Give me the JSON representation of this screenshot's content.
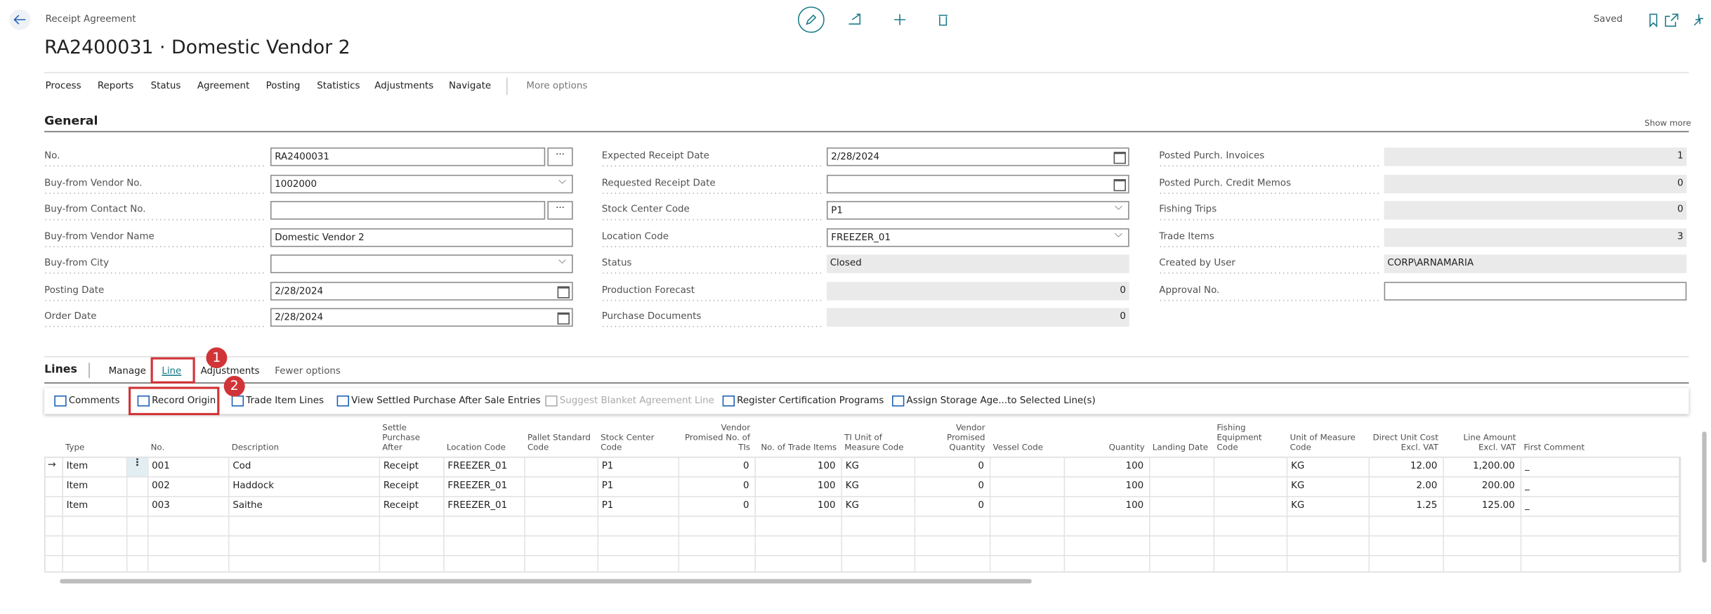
{
  "header": {
    "breadcrumb": "Receipt Agreement",
    "title": "RA2400031 · Domestic Vendor 2",
    "status": "Saved"
  },
  "menu": [
    "Process",
    "Reports",
    "Status",
    "Agreement",
    "Posting",
    "Statistics",
    "Adjustments",
    "Navigate",
    "More options"
  ],
  "general": {
    "title": "General",
    "show_more": "Show more",
    "columns": [
      [
        {
          "label": "No.",
          "value": "RA2400031",
          "control": "lookup"
        },
        {
          "label": "Buy-from Vendor No.",
          "value": "1002000",
          "control": "dropdown"
        },
        {
          "label": "Buy-from Contact No.",
          "control": "lookup"
        },
        {
          "label": "Buy-from Vendor Name",
          "value": "Domestic Vendor 2",
          "control": "text"
        },
        {
          "label": "Buy-from City",
          "control": "dropdown"
        },
        {
          "label": "Posting Date",
          "value": "2/28/2024",
          "control": "date"
        },
        {
          "label": "Order Date",
          "value": "2/28/2024",
          "control": "date"
        }
      ],
      [
        {
          "label": "Expected Receipt Date",
          "value": "2/28/2024",
          "control": "date"
        },
        {
          "label": "Requested Receipt Date",
          "control": "date"
        },
        {
          "label": "Stock Center Code",
          "value": "P1",
          "control": "dropdown"
        },
        {
          "label": "Location Code",
          "value": "FREEZER_01",
          "control": "dropdown"
        },
        {
          "label": "Status",
          "value": "Closed",
          "control": "readonly"
        },
        {
          "label": "Production Forecast",
          "value": 0,
          "control": "readonly-number"
        },
        {
          "label": "Purchase Documents",
          "value": 0,
          "control": "readonly-number"
        }
      ],
      [
        {
          "label": "Posted Purch. Invoices",
          "value": 1,
          "control": "readonly-number"
        },
        {
          "label": "Posted Purch. Credit Memos",
          "value": 0,
          "control": "readonly-number"
        },
        {
          "label": "Fishing Trips",
          "value": 0,
          "control": "readonly-number"
        },
        {
          "label": "Trade Items",
          "value": 3,
          "control": "readonly-number"
        },
        {
          "label": "Created by User",
          "value": "CORP\\ARNAMARIA",
          "control": "readonly"
        },
        {
          "label": "Approval No.",
          "control": "text"
        }
      ]
    ]
  },
  "lines": {
    "title": "Lines",
    "tabs": [
      "Manage",
      "Line",
      "Adjustments",
      "Fewer options"
    ],
    "actions": [
      "Comments",
      "Record Origin",
      "Trade Item Lines",
      "View Settled Purchase After Sale Entries",
      "Suggest Blanket Agreement Line",
      "Register Certification Programs",
      "Assign Storage Age...to Selected Line(s)"
    ],
    "annotations": [
      "1",
      "2"
    ],
    "table": {
      "columns": [
        "Type",
        "No.",
        "Description",
        "Settle Purchase After",
        "Location Code",
        "Pallet Standard Code",
        "Stock Center Code",
        "Vendor Promised No. of TIs",
        "No. of Trade Items",
        "TI Unit of Measure Code",
        "Vendor Promised Quantity",
        "Vessel Code",
        "Quantity",
        "Landing Date",
        "Fishing Equipment Code",
        "Unit of Measure Code",
        "Direct Unit Cost Excl. VAT",
        "Line Amount Excl. VAT",
        "First Comment"
      ],
      "rows": [
        [
          "Item",
          "001",
          "Cod",
          "Receipt",
          "FREEZER_01",
          null,
          "P1",
          "0",
          "100",
          "KG",
          "0",
          null,
          "100",
          null,
          null,
          "KG",
          "12.00",
          "1,200.00",
          "_"
        ],
        [
          "Item",
          "002",
          "Haddock",
          "Receipt",
          "FREEZER_01",
          null,
          "P1",
          "0",
          "100",
          "KG",
          "0",
          null,
          "100",
          null,
          null,
          "KG",
          "2.00",
          "200.00",
          "_"
        ],
        [
          "Item",
          "003",
          "Saithe",
          "Receipt",
          "FREEZER_01",
          null,
          "P1",
          "0",
          "100",
          "KG",
          "0",
          null,
          "100",
          null,
          null,
          "KG",
          "1.25",
          "125.00",
          "_"
        ]
      ]
    }
  }
}
